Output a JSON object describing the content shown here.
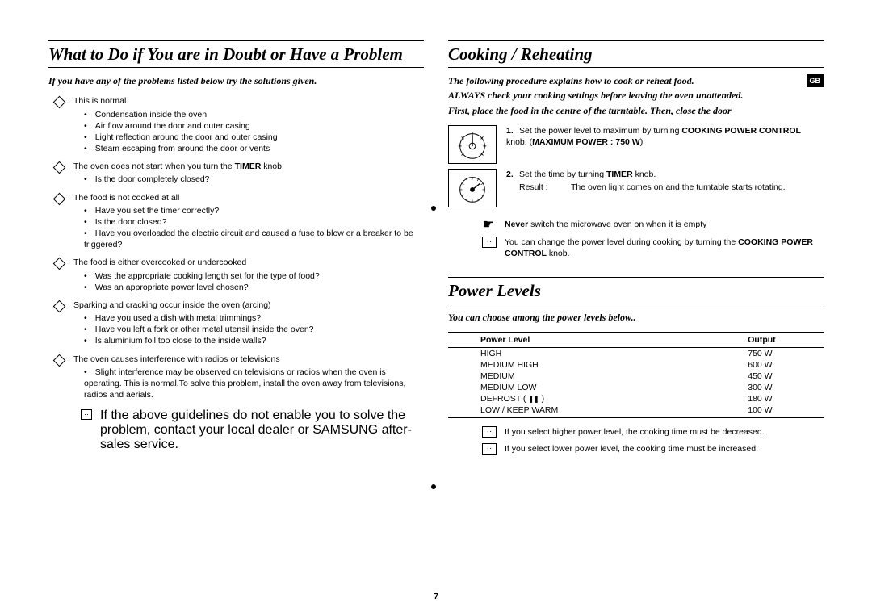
{
  "page_number": "7",
  "gb_badge": "GB",
  "left": {
    "heading": "What to Do if You are in Doubt or Have a Problem",
    "intro": "If you have any of the problems listed below try the solutions given.",
    "problems": [
      {
        "lead": "This is normal.",
        "items": [
          "Condensation inside the oven",
          "Air flow around the door and outer casing",
          "Light reflection around the door and outer casing",
          "Steam escaping from around the door or vents"
        ]
      },
      {
        "lead_pre": "The oven does not start when you turn the ",
        "lead_bold": "TIMER",
        "lead_post": " knob.",
        "items": [
          "Is the door completely closed?"
        ]
      },
      {
        "lead": "The food is not cooked at all",
        "items": [
          "Have you set the timer correctly?",
          "Is the door closed?",
          "Have you overloaded the electric circuit and caused a fuse to blow or a breaker to be triggered?"
        ]
      },
      {
        "lead": "The food is either overcooked or undercooked",
        "items": [
          "Was the appropriate cooking length set for the type of food?",
          "Was an appropriate power level chosen?"
        ]
      },
      {
        "lead": "Sparking and cracking occur inside the oven (arcing)",
        "items": [
          "Have you used a dish with metal trimmings?",
          "Have you left a fork or other metal utensil inside the oven?",
          "Is aluminium foil too close to the inside walls?"
        ]
      },
      {
        "lead": "The oven causes interference with radios or televisions",
        "items": [
          "Slight interference may be observed on televisions or radios when the oven is operating. This is normal.To solve this problem, install the oven away from televisions, radios and aerials."
        ]
      }
    ],
    "note_symbol": "··",
    "note": "If the above guidelines do not enable you to solve the problem, contact your local dealer or SAMSUNG after-sales service."
  },
  "right": {
    "heading1": "Cooking / Reheating",
    "intro1_a": "The following procedure explains how to cook or reheat food.",
    "intro1_b": "ALWAYS check your cooking settings before leaving the oven unattended.",
    "intro1_c": "First, place the food in the centre of the turntable. Then, close the door",
    "step1_num": "1.",
    "step1_pre": "Set the power level to maximum by turning ",
    "step1_b1": "COOKING POWER CONTROL",
    "step1_mid": " knob. (",
    "step1_b2": "MAXIMUM POWER : 750 W",
    "step1_post": ")",
    "step2_num": "2.",
    "step2_pre": "Set the time by turning ",
    "step2_bold": "TIMER",
    "step2_post": " knob.",
    "result_label": "Result :",
    "result_text": "The oven light comes on and the turntable starts rotating.",
    "hand_icon": "☛",
    "never_bold": "Never",
    "never_rest": " switch the microwave oven on when it is empty",
    "tip_pre": "You can change the power level during cooking by turning the ",
    "tip_bold": "COOKING POWER CONTROL",
    "tip_post": " knob.",
    "heading2": "Power Levels",
    "intro2": "You can choose among the power levels below..",
    "table": {
      "col1": "Power Level",
      "col2": "Output",
      "rows": [
        [
          "HIGH",
          "750 W"
        ],
        [
          "MEDIUM HIGH",
          "600 W"
        ],
        [
          "MEDIUM",
          "450 W"
        ],
        [
          "MEDIUM LOW",
          "300 W"
        ],
        [
          "DEFROST (  )",
          "180 W"
        ],
        [
          "LOW / KEEP WARM",
          "100 W"
        ]
      ],
      "defrost_icon": "❚❚"
    },
    "tip2": "If you select higher power level, the cooking time must be decreased.",
    "tip3": "If you select lower power level, the cooking time must be increased."
  }
}
